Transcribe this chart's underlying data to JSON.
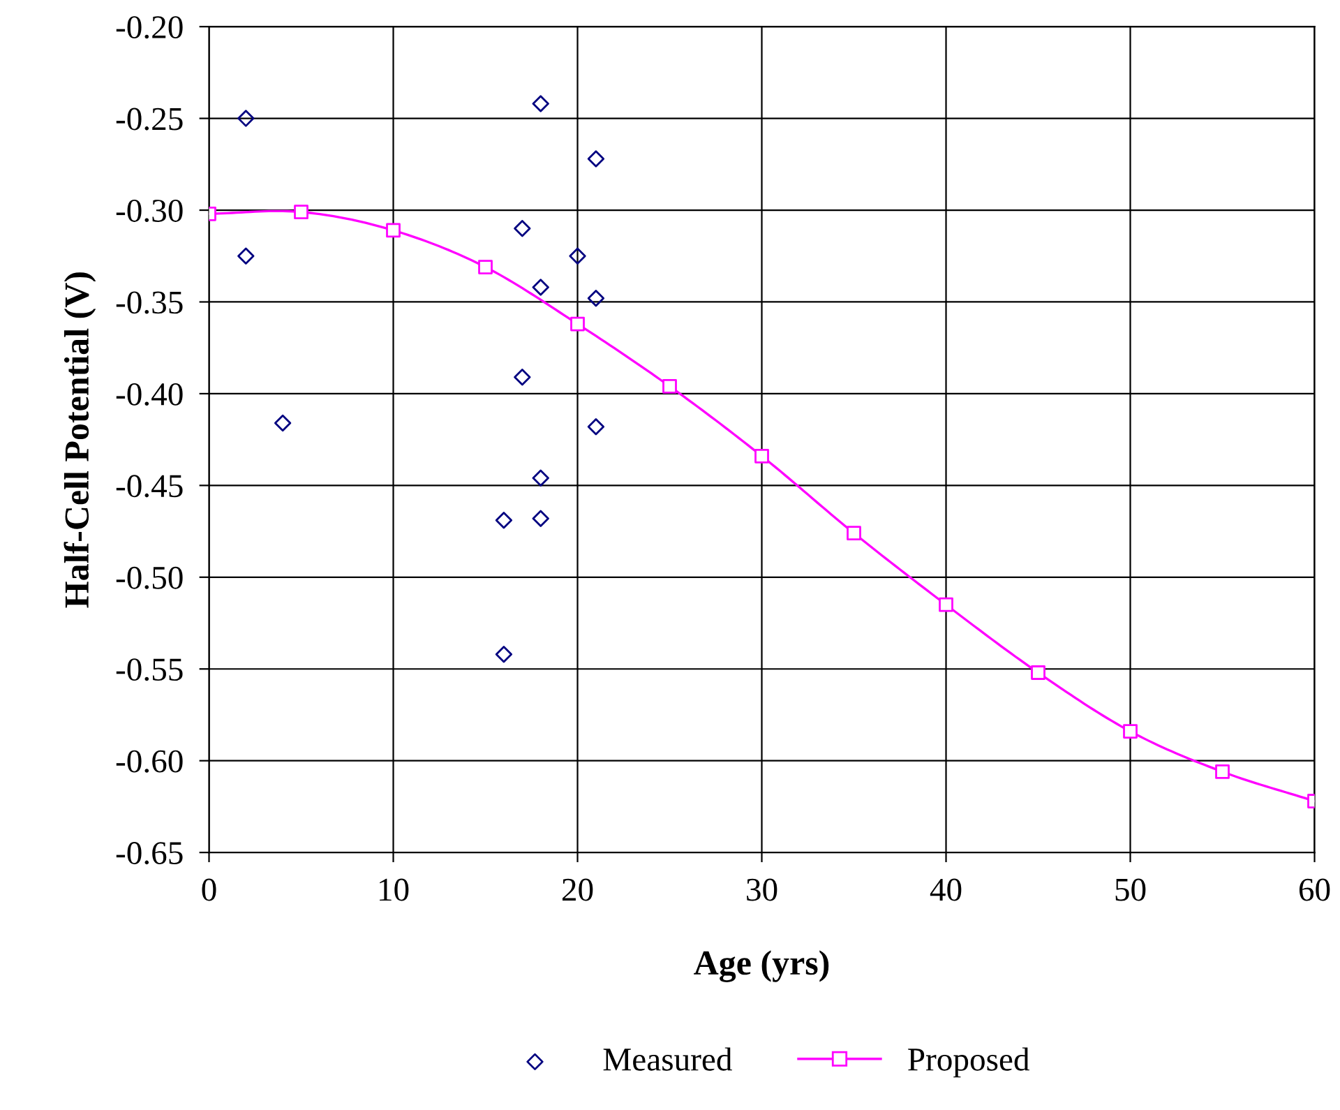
{
  "chart_data": {
    "type": "scatter",
    "xlabel": "Age (yrs)",
    "ylabel": "Half-Cell Potential (V)",
    "xlim": [
      0,
      60
    ],
    "xticks": [
      0,
      10,
      20,
      30,
      40,
      50,
      60
    ],
    "ylim": [
      -0.65,
      -0.2
    ],
    "yticks": [
      {
        "value": -0.65,
        "label": "-0.65"
      },
      {
        "value": -0.6,
        "label": "-0.60"
      },
      {
        "value": -0.55,
        "label": "-0.55"
      },
      {
        "value": -0.5,
        "label": "-0.50"
      },
      {
        "value": -0.45,
        "label": "-0.45"
      },
      {
        "value": -0.4,
        "label": "-0.40"
      },
      {
        "value": -0.35,
        "label": "-0.35"
      },
      {
        "value": -0.3,
        "label": "-0.30"
      },
      {
        "value": -0.25,
        "label": "-0.25"
      },
      {
        "value": -0.2,
        "label": "-0.20"
      }
    ],
    "grid": true,
    "legend": "bottom",
    "series": [
      {
        "name": "Measured",
        "marker": "diamond",
        "color": "#000080",
        "x": [
          2,
          2,
          4,
          18,
          21,
          17,
          20,
          18,
          21,
          17,
          21,
          18,
          16,
          18,
          16
        ],
        "values": [
          -0.25,
          -0.325,
          -0.416,
          -0.242,
          -0.272,
          -0.31,
          -0.325,
          -0.342,
          -0.348,
          -0.391,
          -0.418,
          -0.446,
          -0.469,
          -0.468,
          -0.542
        ]
      },
      {
        "name": "Proposed",
        "type": "line",
        "marker": "square",
        "color": "#ff00ff",
        "x": [
          0,
          5,
          10,
          15,
          20,
          25,
          30,
          35,
          40,
          45,
          50,
          55,
          60
        ],
        "values": [
          -0.302,
          -0.301,
          -0.311,
          -0.331,
          -0.362,
          -0.396,
          -0.434,
          -0.476,
          -0.515,
          -0.552,
          -0.584,
          -0.606,
          -0.622
        ]
      }
    ]
  }
}
